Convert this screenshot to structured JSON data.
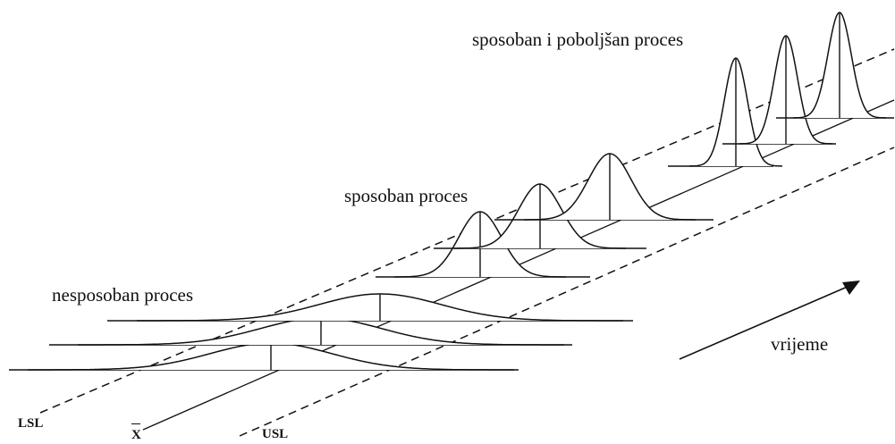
{
  "labels": {
    "improved_capable": "sposoban i poboljšan proces",
    "capable": "sposoban proces",
    "incapable": "nesposoban proces",
    "time": "vrijeme",
    "lsl": "LSL",
    "mean": "X",
    "usl": "USL"
  },
  "colors": {
    "line": "#111111",
    "background": "#ffffff"
  }
}
